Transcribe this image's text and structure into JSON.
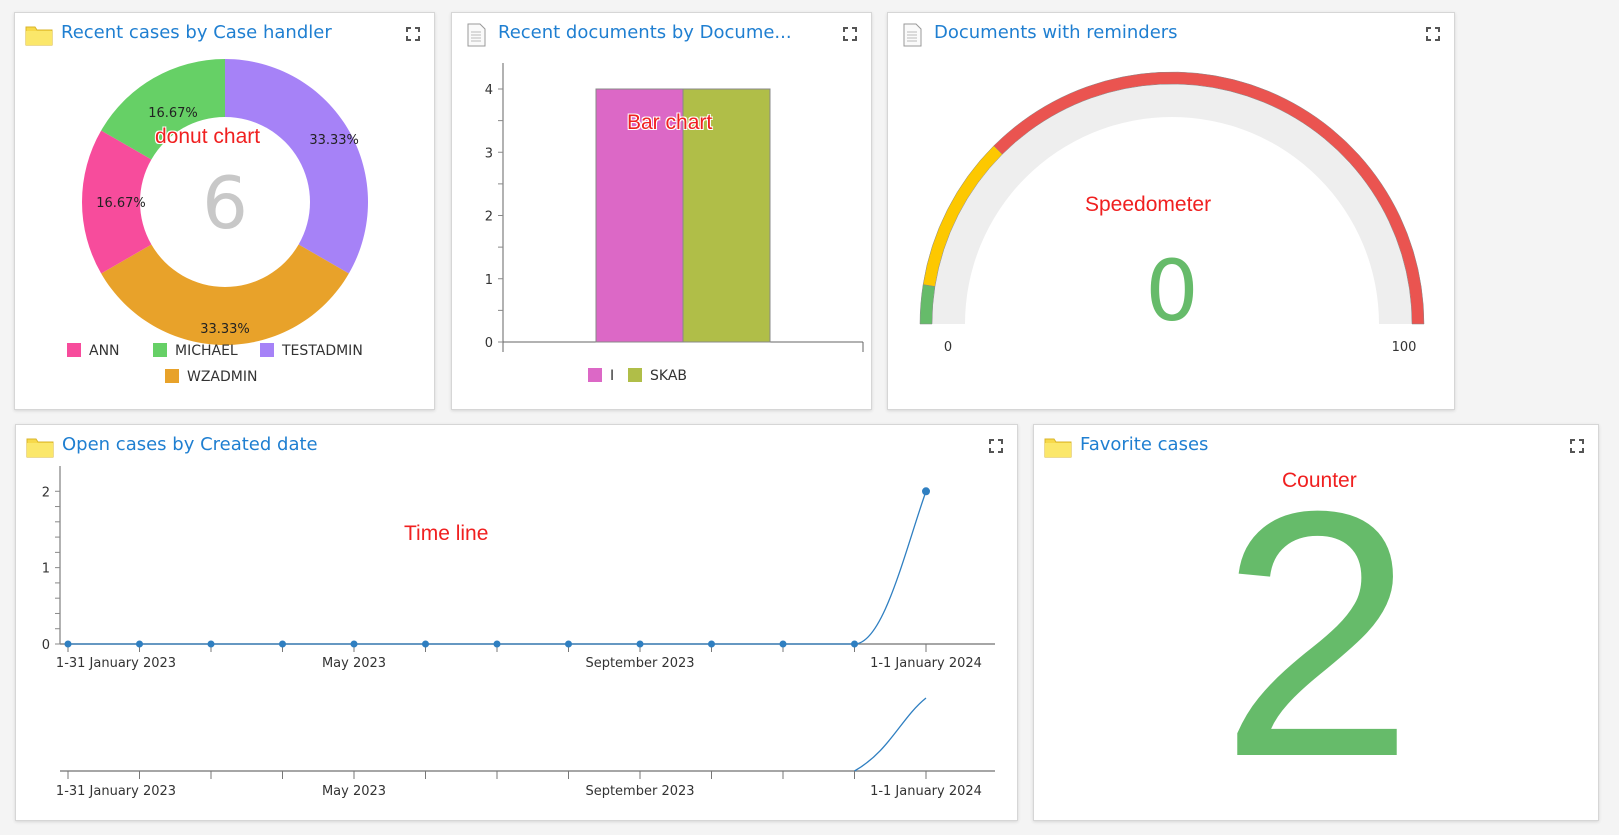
{
  "widgets": {
    "cases_by_handler": {
      "title": "Recent cases by Case handler",
      "icon": "folder-icon",
      "annotation": "donut chart",
      "center_total": "6"
    },
    "documents_by_type": {
      "title": "Recent documents by Docume...",
      "icon": "document-icon",
      "annotation": "Bar chart"
    },
    "documents_reminders": {
      "title": "Documents with reminders",
      "icon": "document-icon",
      "annotation": "Speedometer"
    },
    "open_cases_created": {
      "title": "Open cases by Created date",
      "icon": "folder-icon",
      "annotation": "Time line"
    },
    "favorite_cases": {
      "title": "Favorite cases",
      "icon": "folder-icon",
      "annotation": "Counter",
      "value": "2",
      "color": "#66bb6a"
    }
  },
  "chart_data": [
    {
      "type": "pie",
      "variant": "donut",
      "title": "Recent cases by Case handler",
      "total": 6,
      "slices": [
        {
          "name": "TESTADMIN",
          "value": 2,
          "label": "33.33%",
          "color": "#a682f7"
        },
        {
          "name": "WZADMIN",
          "value": 2,
          "label": "33.33%",
          "color": "#e8a22a"
        },
        {
          "name": "ANN",
          "value": 1,
          "label": "16.67%",
          "color": "#f74c9c"
        },
        {
          "name": "MICHAEL",
          "value": 1,
          "label": "16.67%",
          "color": "#66d066"
        }
      ],
      "legend": [
        "ANN",
        "MICHAEL",
        "TESTADMIN",
        "WZADMIN"
      ],
      "legend_placement": "bottom"
    },
    {
      "type": "bar",
      "title": "Recent documents by Docume...",
      "categories": [
        "I",
        "SKAB"
      ],
      "values": [
        4,
        4
      ],
      "colors": [
        "#dc68c6",
        "#b0be48"
      ],
      "ylim": [
        0,
        4
      ],
      "yticks": [
        "0",
        "1",
        "2",
        "3",
        "4"
      ],
      "legend_placement": "bottom"
    },
    {
      "type": "gauge",
      "title": "Documents with reminders",
      "value": 0,
      "value_label": "0",
      "min": 0,
      "max": 100,
      "min_label": "0",
      "max_label": "100",
      "bands": [
        {
          "from": 0,
          "to": 5,
          "color": "#66bb6a"
        },
        {
          "from": 5,
          "to": 25,
          "color": "#fdc800"
        },
        {
          "from": 25,
          "to": 100,
          "color": "#ea5450"
        }
      ],
      "value_color": "#66bb6a"
    },
    {
      "type": "line",
      "title": "Open cases by Created date",
      "x": [
        "2023-01",
        "2023-02",
        "2023-03",
        "2023-04",
        "2023-05",
        "2023-06",
        "2023-07",
        "2023-08",
        "2023-09",
        "2023-10",
        "2023-11",
        "2023-12",
        "2024-01"
      ],
      "values": [
        0,
        0,
        0,
        0,
        0,
        0,
        0,
        0,
        0,
        0,
        0,
        0,
        2
      ],
      "xtick_labels": [
        {
          "index": 0,
          "label": "1-31 January 2023"
        },
        {
          "index": 4,
          "label": "May 2023"
        },
        {
          "index": 8,
          "label": "September 2023"
        },
        {
          "index": 12,
          "label": "1-1 January 2024"
        }
      ],
      "ylim": [
        0,
        2.2
      ],
      "yticks": [
        "0",
        "1",
        "2"
      ],
      "color": "#2f7fc1",
      "navigator": true
    }
  ]
}
